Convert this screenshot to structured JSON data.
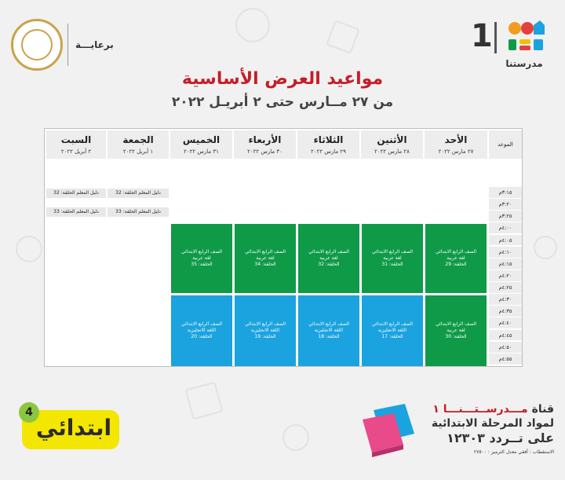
{
  "brand": {
    "number": "1",
    "name": "مدرستنا"
  },
  "sponsor": {
    "label": "برعايـــة"
  },
  "title": "مواعيد العرض الأساسية",
  "subtitle": "من ٢٧ مــارس حتى ٢ أبريـل ٢٠٢٢",
  "schedule": {
    "time_header": "الموعد",
    "days": [
      {
        "day": "الأحد",
        "date": "٢٧ مارس ٢٠٢٢"
      },
      {
        "day": "الأثنين",
        "date": "٢٨ مارس ٢٠٢٢"
      },
      {
        "day": "الثلاثاء",
        "date": "٢٩ مارس ٢٠٢٢"
      },
      {
        "day": "الأربعاء",
        "date": "٣٠ مارس ٢٠٢٢"
      },
      {
        "day": "الخميس",
        "date": "٣١ مارس ٢٠٢٢"
      },
      {
        "day": "الجمعة",
        "date": "١ أبريل ٢٠٢٢"
      },
      {
        "day": "السبت",
        "date": "٢ أبريل ٢٠٢٢"
      }
    ],
    "times": [
      "٣:١٥م",
      "٣:٢٠م",
      "٣:٢٥م",
      "٤:٠٠م",
      "٤:٠٥م",
      "٤:١٠م",
      "٤:١٥م",
      "٤:٢٠م",
      "٤:٢٥م",
      "٤:٣٠م",
      "٤:٣٥م",
      "٤:٤٠م",
      "٤:٤٥م",
      "٤:٥٠م",
      "٤:٥٥م"
    ],
    "guides": {
      "friday_1": "دليل المعلم الحلقة: 32",
      "friday_2": "دليل المعلم الحلقة: 33",
      "saturday_1": "دليل المعلم الحلقة: 32",
      "saturday_2": "دليل المعلم الحلقة: 33"
    },
    "arabic_block": [
      {
        "grade": "الصف الرابع الابتدائي",
        "subject": "لغة عربية",
        "episode": "الحلقة: 29"
      },
      {
        "grade": "الصف الرابع الابتدائي",
        "subject": "لغة عربية",
        "episode": "الحلقة: 31"
      },
      {
        "grade": "الصف الرابع الابتدائي",
        "subject": "لغة عربية",
        "episode": "الحلقة: 32"
      },
      {
        "grade": "الصف الرابع الابتدائي",
        "subject": "لغة عربية",
        "episode": "الحلقة: 34"
      },
      {
        "grade": "الصف الرابع الابتدائي",
        "subject": "لغة عربية",
        "episode": "الحلقة: 35"
      }
    ],
    "second_block": [
      {
        "grade": "الصف الرابع الابتدائي",
        "subject": "لغة عربية",
        "episode": "الحلقة: 30"
      },
      {
        "grade": "الصف الرابع الابتدائي",
        "subject": "اللغة الانجليزية",
        "episode": "الحلقة: 17"
      },
      {
        "grade": "الصف الرابع الابتدائي",
        "subject": "اللغة الانجليزية",
        "episode": "الحلقة: 18"
      },
      {
        "grade": "الصف الرابع الابتدائي",
        "subject": "اللغة الانجليزية",
        "episode": "الحلقة: 19"
      },
      {
        "grade": "الصف الرابع الابتدائي",
        "subject": "اللغة الانجليزية",
        "episode": "الحلقة: 20"
      }
    ]
  },
  "footer": {
    "ibtida_text": "ابتدائي",
    "ibtida_num": "4",
    "channel_prefix": "قناة",
    "channel_name": "مـــدرســتـــنـــا ١",
    "channel_line2": "لمواد المرحلة الابتدائية",
    "channel_line3": "على تــردد ١٢٣٠٣",
    "channel_line4": "الاستقطاب : أفقي معدل الترميز : ٢٧٥٠٠"
  },
  "colors": {
    "title_red": "#c41e2a",
    "arabic_green": "#0f9a47",
    "english_blue": "#1aa3df",
    "yellow": "#f3e600"
  }
}
